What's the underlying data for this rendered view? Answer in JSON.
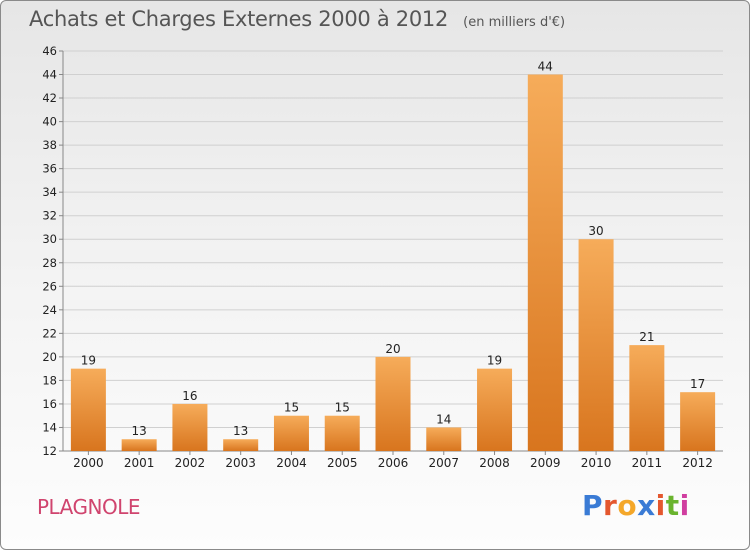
{
  "header": {
    "title": "Achats et Charges Externes 2000 à 2012",
    "unit": "(en milliers d'€)"
  },
  "footer": {
    "commune": "PLAGNOLE",
    "logo_text": "Proxiti",
    "logo_colors": [
      "#3a7bd5",
      "#e4572e",
      "#f4a72a",
      "#3a7bd5",
      "#e4572e",
      "#6ab42e",
      "#d03ea0"
    ]
  },
  "colors": {
    "bar_light": "#f6ac5a",
    "bar_dark": "#d8751e",
    "grid": "#d0d0d0",
    "axis": "#888888"
  },
  "chart_data": {
    "type": "bar",
    "title": "Achats et Charges Externes 2000 à 2012",
    "categories": [
      "2000",
      "2001",
      "2002",
      "2003",
      "2004",
      "2005",
      "2006",
      "2007",
      "2008",
      "2009",
      "2010",
      "2011",
      "2012"
    ],
    "values": [
      19,
      13,
      16,
      13,
      15,
      15,
      20,
      14,
      19,
      44,
      30,
      21,
      17
    ],
    "ylim": [
      12,
      46
    ],
    "ytick_step": 2,
    "grid": true,
    "data_labels": true
  }
}
